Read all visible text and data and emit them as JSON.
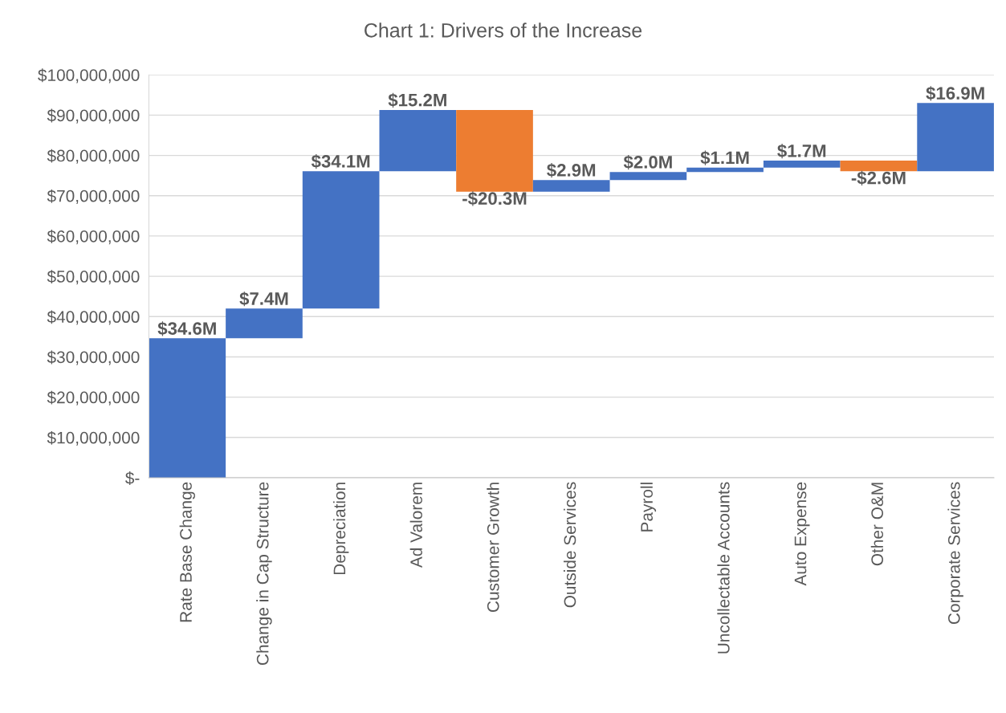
{
  "chart_data": {
    "type": "bar",
    "title": "Chart 1: Drivers of the Increase",
    "categories": [
      "Rate Base Change",
      "Change in Cap Structure",
      "Depreciation",
      "Ad Valorem",
      "Customer Growth",
      "Outside Services",
      "Payroll",
      "Uncollectable Accounts",
      "Auto Expense",
      "Other O&M",
      "Corporate Services"
    ],
    "values": [
      34600000,
      7400000,
      34100000,
      15200000,
      -20300000,
      2900000,
      2000000,
      1100000,
      1700000,
      -2600000,
      16900000
    ],
    "base": [
      0,
      34600000,
      42000000,
      76100000,
      91300000,
      71000000,
      73900000,
      75900000,
      77000000,
      78700000,
      76100000
    ],
    "colors": [
      "#4472c4",
      "#4472c4",
      "#4472c4",
      "#4472c4",
      "#ed7d31",
      "#4472c4",
      "#4472c4",
      "#4472c4",
      "#4472c4",
      "#ed7d31",
      "#4472c4"
    ],
    "value_labels": [
      "$34.6M",
      "$7.4M",
      "$34.1M",
      "$15.2M",
      "-$20.3M",
      "$2.9M",
      "$2.0M",
      "$1.1M",
      "$1.7M",
      "-$2.6M",
      "$16.9M"
    ],
    "ylim": [
      0,
      100000000
    ],
    "yticks": [
      {
        "value": 0,
        "label": "$-"
      },
      {
        "value": 10000000,
        "label": "$10,000,000"
      },
      {
        "value": 20000000,
        "label": "$20,000,000"
      },
      {
        "value": 30000000,
        "label": "$30,000,000"
      },
      {
        "value": 40000000,
        "label": "$40,000,000"
      },
      {
        "value": 50000000,
        "label": "$50,000,000"
      },
      {
        "value": 60000000,
        "label": "$60,000,000"
      },
      {
        "value": 70000000,
        "label": "$70,000,000"
      },
      {
        "value": 80000000,
        "label": "$80,000,000"
      },
      {
        "value": 90000000,
        "label": "$90,000,000"
      },
      {
        "value": 100000000,
        "label": "$100,000,000"
      }
    ],
    "grid": "y"
  }
}
